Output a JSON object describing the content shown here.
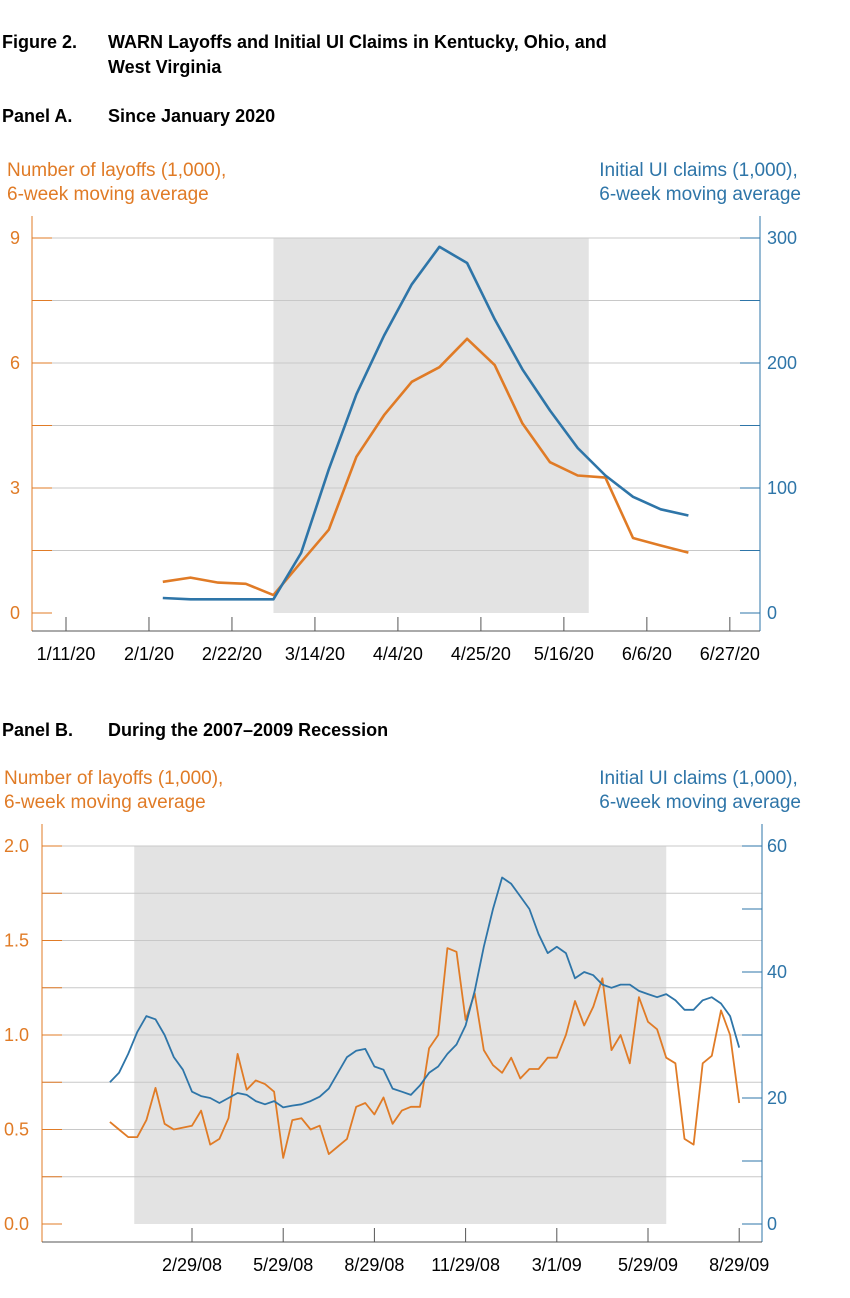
{
  "figure": {
    "label": "Figure 2.",
    "title": "WARN Layoffs and Initial UI Claims in Kentucky, Ohio, and West Virginia"
  },
  "colors": {
    "layoffs": "#e07b26",
    "claims": "#2e75a8",
    "recession": "#e3e3e3",
    "grid": "#c8c8c8"
  },
  "chart_data": [
    {
      "type": "line",
      "panel_label": "Panel A.",
      "title": "Since January 2020",
      "left_axis_label": "Number of layoffs (1,000),\n6-week moving average",
      "right_axis_label": "Initial UI claims (1,000),\n6-week moving average",
      "x_tick_labels": [
        "1/11/20",
        "2/1/20",
        "2/22/20",
        "3/14/20",
        "4/4/20",
        "4/25/20",
        "5/16/20",
        "6/6/20",
        "6/27/20"
      ],
      "left_ticks": [
        "0",
        "3",
        "6",
        "9"
      ],
      "right_ticks": [
        "0",
        "100",
        "200",
        "300"
      ],
      "ylim_left": [
        0,
        9
      ],
      "ylim_right": [
        0,
        300
      ],
      "recession_weeks": [
        7.5,
        18.9
      ],
      "series": [
        {
          "name": "Number of layoffs (1,000), 6-week moving average",
          "axis": "left",
          "start_week": 3.5,
          "values": [
            0.75,
            0.85,
            0.73,
            0.7,
            0.43,
            1.22,
            2.0,
            3.75,
            4.75,
            5.55,
            5.9,
            6.58,
            5.95,
            4.55,
            3.62,
            3.3,
            3.25,
            1.8,
            1.62,
            1.45
          ]
        },
        {
          "name": "Initial UI claims (1,000), 6-week moving average",
          "axis": "right",
          "start_week": 3.5,
          "values": [
            12,
            11,
            11,
            11,
            11,
            48,
            115,
            175,
            222,
            263,
            293,
            280,
            235,
            195,
            162,
            132,
            110,
            93,
            83,
            78
          ]
        }
      ]
    },
    {
      "type": "line",
      "panel_label": "Panel B.",
      "title": "During the 2007–2009 Recession",
      "left_axis_label": "Number of layoffs (1,000),\n6-week moving average",
      "right_axis_label": "Initial UI claims (1,000),\n6-week moving average",
      "x_tick_labels": [
        "2/29/08",
        "5/29/08",
        "8/29/08",
        "11/29/08",
        "3/1/09",
        "5/29/09",
        "8/29/09"
      ],
      "left_ticks": [
        "0.0",
        "0.5",
        "1.0",
        "1.5",
        "2.0"
      ],
      "right_ticks": [
        "0",
        "20",
        "40",
        "60"
      ],
      "ylim_left": [
        0,
        2.0
      ],
      "ylim_right": [
        0,
        60
      ],
      "recession_months": [
        -1.9,
        15.6
      ],
      "series": [
        {
          "name": "Number of layoffs (1,000), 6-week moving average",
          "axis": "left",
          "x_months": [
            -2.7,
            -2.4,
            -2.1,
            -1.8,
            -1.5,
            -1.2,
            -0.9,
            -0.6,
            -0.3,
            0.0,
            0.3,
            0.6,
            0.9,
            1.2,
            1.5,
            1.8,
            2.1,
            2.4,
            2.7,
            3.0,
            3.3,
            3.6,
            3.9,
            4.2,
            4.5,
            4.8,
            5.1,
            5.4,
            5.7,
            6.0,
            6.3,
            6.6,
            6.9,
            7.2,
            7.5,
            7.8,
            8.1,
            8.4,
            8.7,
            9.0,
            9.3,
            9.6,
            9.9,
            10.2,
            10.5,
            10.8,
            11.1,
            11.4,
            11.7,
            12.0,
            12.3,
            12.6,
            12.9,
            13.2,
            13.5,
            13.8,
            14.1,
            14.4,
            14.7,
            15.0,
            15.3,
            15.6,
            15.9,
            16.2,
            16.5,
            16.8,
            17.1,
            17.4,
            17.7,
            18.0
          ],
          "values": [
            0.54,
            0.5,
            0.46,
            0.46,
            0.55,
            0.72,
            0.53,
            0.5,
            0.51,
            0.52,
            0.6,
            0.42,
            0.45,
            0.56,
            0.9,
            0.71,
            0.76,
            0.74,
            0.7,
            0.35,
            0.55,
            0.56,
            0.5,
            0.52,
            0.37,
            0.41,
            0.45,
            0.62,
            0.64,
            0.58,
            0.67,
            0.53,
            0.6,
            0.62,
            0.62,
            0.93,
            1.0,
            1.46,
            1.44,
            1.08,
            1.22,
            0.92,
            0.84,
            0.8,
            0.88,
            0.77,
            0.82,
            0.82,
            0.88,
            0.88,
            1.0,
            1.18,
            1.05,
            1.15,
            1.3,
            0.92,
            1.0,
            0.85,
            1.2,
            1.07,
            1.03,
            0.88,
            0.85,
            0.45,
            0.42,
            0.85,
            0.89,
            1.13,
            1.0,
            0.64
          ]
        },
        {
          "name": "Initial UI claims (1,000), 6-week moving average",
          "axis": "right",
          "x_months": [
            -2.7,
            -2.4,
            -2.1,
            -1.8,
            -1.5,
            -1.2,
            -0.9,
            -0.6,
            -0.3,
            0.0,
            0.3,
            0.6,
            0.9,
            1.2,
            1.5,
            1.8,
            2.1,
            2.4,
            2.7,
            3.0,
            3.3,
            3.6,
            3.9,
            4.2,
            4.5,
            4.8,
            5.1,
            5.4,
            5.7,
            6.0,
            6.3,
            6.6,
            6.9,
            7.2,
            7.5,
            7.8,
            8.1,
            8.4,
            8.7,
            9.0,
            9.3,
            9.6,
            9.9,
            10.2,
            10.5,
            10.8,
            11.1,
            11.4,
            11.7,
            12.0,
            12.3,
            12.6,
            12.9,
            13.2,
            13.5,
            13.8,
            14.1,
            14.4,
            14.7,
            15.0,
            15.3,
            15.6,
            15.9,
            16.2,
            16.5,
            16.8,
            17.1,
            17.4,
            17.7,
            18.0
          ],
          "values": [
            22.5,
            24.0,
            27.0,
            30.5,
            33.0,
            32.5,
            30.0,
            26.5,
            24.5,
            21.0,
            20.3,
            20.0,
            19.2,
            20.0,
            20.8,
            20.5,
            19.5,
            19.0,
            19.5,
            18.5,
            18.8,
            19.0,
            19.5,
            20.2,
            21.5,
            24.0,
            26.5,
            27.5,
            27.8,
            25.0,
            24.5,
            21.5,
            21.0,
            20.5,
            22.0,
            24.0,
            25.0,
            27.0,
            28.5,
            31.5,
            37.0,
            44.0,
            50.0,
            55.0,
            54.0,
            52.0,
            50.0,
            46.0,
            43.0,
            44.0,
            43.0,
            39.0,
            40.0,
            39.5,
            38.0,
            37.5,
            38.0,
            38.0,
            37.0,
            36.5,
            36.0,
            36.5,
            35.5,
            34.0,
            34.0,
            35.5,
            36.0,
            35.0,
            33.0,
            28.0
          ]
        }
      ]
    }
  ]
}
